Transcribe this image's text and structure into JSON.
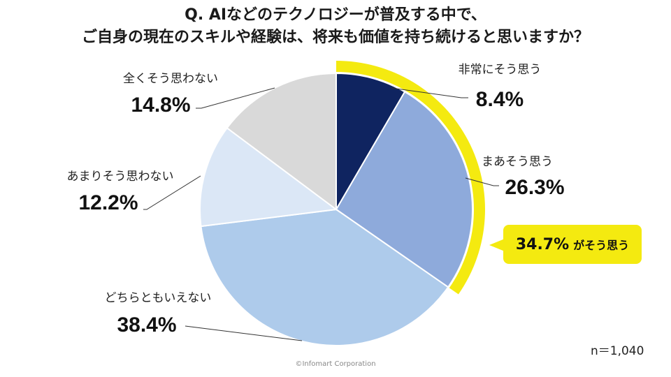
{
  "title_line1": "Q. AIなどのテクノロジーが普及する中で、",
  "title_line2": "ご自身の現在のスキルや経験は、将来も価値を持ち続けると思いますか？",
  "sample_size": "n＝1,040",
  "copyright": "©Infomart Corporation",
  "callout": {
    "value": "34.7%",
    "text": "がそう思う",
    "color": "#f4ea10"
  },
  "chart_data": {
    "type": "pie",
    "start": "12 o'clock",
    "direction": "clockwise",
    "slices": [
      {
        "label": "非常にそう思う",
        "value": 8.4,
        "value_label": "8.4%",
        "color": "#0f2460"
      },
      {
        "label": "まあそう思う",
        "value": 26.3,
        "value_label": "26.3%",
        "color": "#8eaadb"
      },
      {
        "label": "どちらともいえない",
        "value": 38.4,
        "value_label": "38.4%",
        "color": "#aecbeb"
      },
      {
        "label": "あまりそう思わない",
        "value": 12.2,
        "value_label": "12.2%",
        "color": "#dbe7f6"
      },
      {
        "label": "全くそう思わない",
        "value": 14.8,
        "value_label": "14.8%",
        "color": "#d9d9d9"
      }
    ]
  }
}
